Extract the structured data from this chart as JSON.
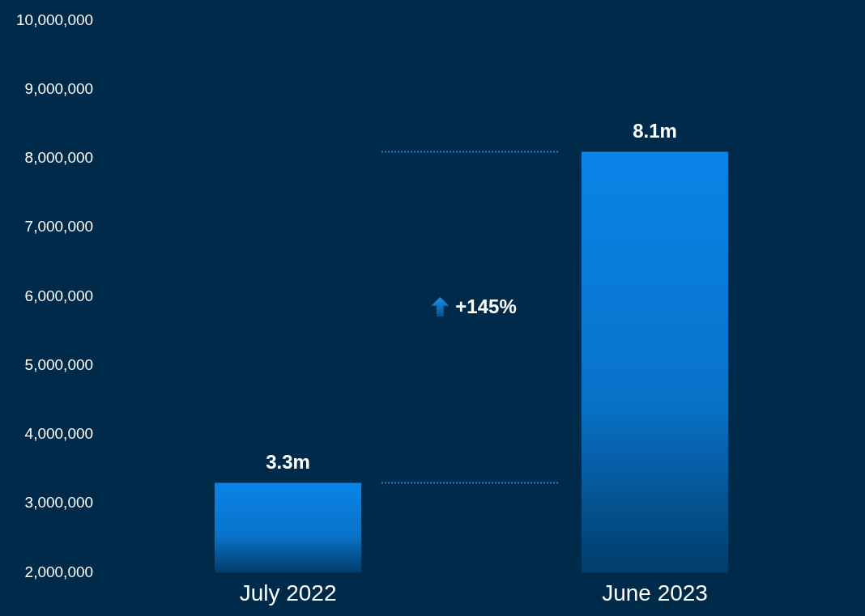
{
  "chart_data": {
    "type": "bar",
    "categories": [
      "July 2022",
      "June 2023"
    ],
    "values": [
      3300000,
      8100000
    ],
    "value_labels": [
      "3.3m",
      "8.1m"
    ],
    "color": "#0a84e8",
    "ylim": [
      2000000,
      10000000
    ],
    "yticks": [
      {
        "value": 2000000,
        "label": "2,000,000"
      },
      {
        "value": 3000000,
        "label": "3,000,000"
      },
      {
        "value": 4000000,
        "label": "4,000,000"
      },
      {
        "value": 5000000,
        "label": "5,000,000"
      },
      {
        "value": 6000000,
        "label": "6,000,000"
      },
      {
        "value": 7000000,
        "label": "7,000,000"
      },
      {
        "value": 8000000,
        "label": "8,000,000"
      },
      {
        "value": 9000000,
        "label": "9,000,000"
      },
      {
        "value": 10000000,
        "label": "10,000,000"
      }
    ],
    "grid": false,
    "legend": false,
    "ref_lines": [
      {
        "axis": "y",
        "value": 3300000,
        "color": "#1e88e5",
        "line_style": "dotted"
      },
      {
        "axis": "y",
        "value": 8100000,
        "color": "#1e88e5",
        "line_style": "dotted"
      }
    ],
    "annotations": [
      "+145%"
    ]
  }
}
